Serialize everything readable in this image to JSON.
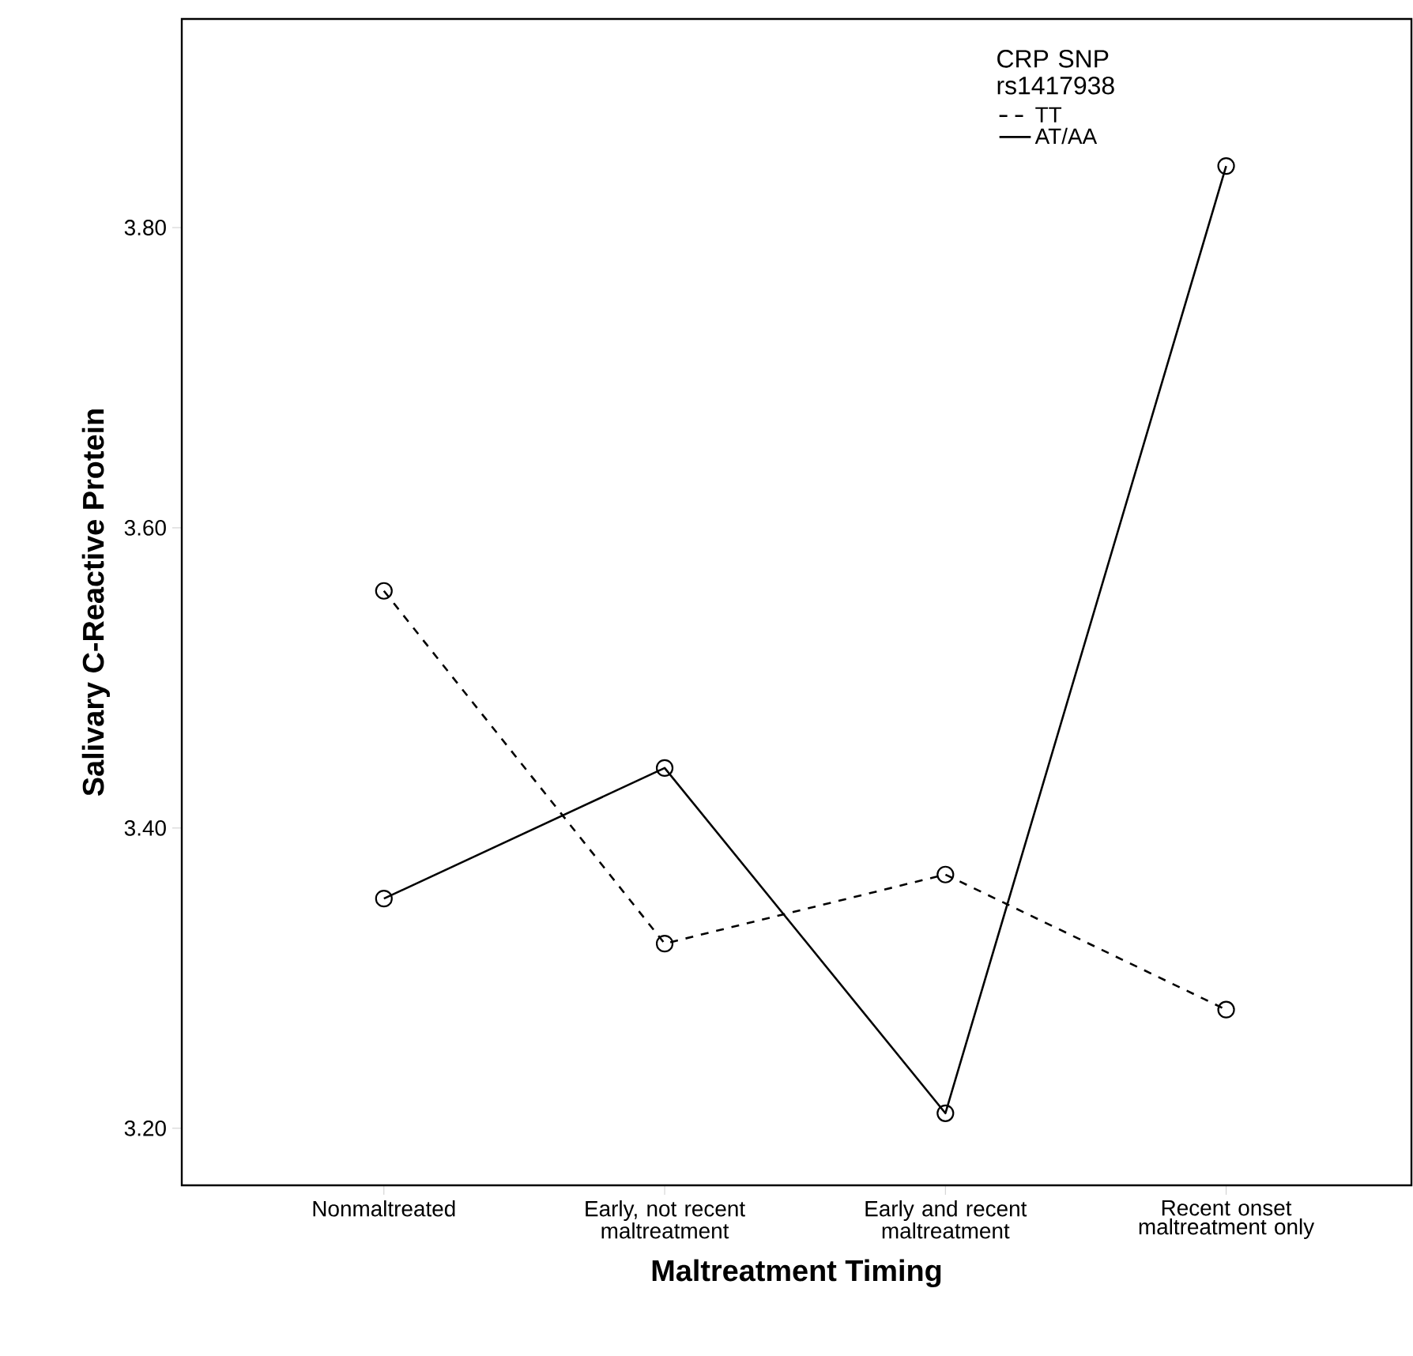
{
  "chart_data": {
    "type": "line",
    "xlabel": "Maltreatment Timing",
    "ylabel": "Salivary C-Reactive Protein",
    "legend_title": "CRP SNP rs1417938",
    "categories": [
      "Nonmaltreated",
      "Early, not recent maltreatment",
      "Early and recent maltreatment",
      "Recent onset maltreatment only"
    ],
    "series": [
      {
        "name": "TT",
        "color": "#000000",
        "line_style": "dashed",
        "values": [
          3.558,
          3.323,
          3.369,
          3.279
        ]
      },
      {
        "name": "AT/AA",
        "color": "#000000",
        "line_style": "solid",
        "values": [
          3.353,
          3.44,
          3.21,
          3.841
        ]
      }
    ],
    "ylim": [
      3.162,
      3.939
    ],
    "yticks": [
      {
        "value": 3.2,
        "label": "3.20"
      },
      {
        "value": 3.4,
        "label": "3.40"
      },
      {
        "value": 3.6,
        "label": "3.60"
      },
      {
        "value": 3.8,
        "label": "3.80"
      }
    ],
    "marker": "circle",
    "grid": false,
    "legend": "top right"
  }
}
